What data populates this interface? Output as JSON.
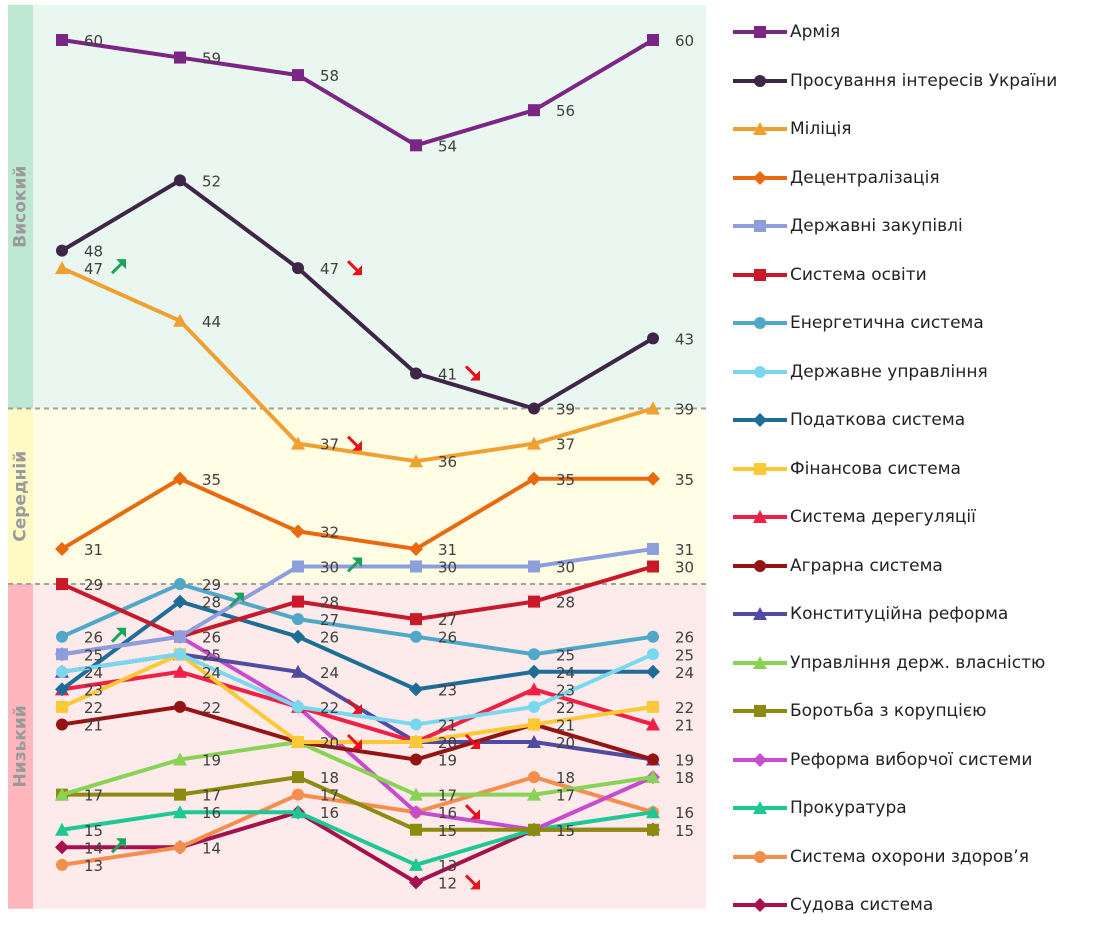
{
  "chart_data": {
    "type": "line",
    "x": [
      "1",
      "2",
      "3",
      "4",
      "5",
      "6"
    ],
    "bands": [
      {
        "name": "Високий",
        "from": 39,
        "to": 62,
        "color": "#bfe8d2",
        "fill": "#eaf6f0"
      },
      {
        "name": "Середній",
        "from": 29,
        "to": 39,
        "color": "#fff9c4",
        "fill": "#fffde3"
      },
      {
        "name": "Низький",
        "from": 10.5,
        "to": 29,
        "color": "#ffb6bc",
        "fill": "#fdeaea"
      }
    ],
    "ylim": [
      10.5,
      62
    ],
    "series": [
      {
        "name": "Армія",
        "color": "#7b2585",
        "marker": "square",
        "values": [
          60,
          59,
          58,
          54,
          56,
          60
        ]
      },
      {
        "name": "Просування інтересів України",
        "color": "#3f2548",
        "marker": "circle",
        "values": [
          48,
          52,
          47,
          41,
          39,
          43
        ]
      },
      {
        "name": "Міліція",
        "color": "#f0a030",
        "marker": "triangle",
        "values": [
          47,
          44,
          37,
          36,
          37,
          39
        ]
      },
      {
        "name": "Децентралізація",
        "color": "#e8690f",
        "marker": "diamond",
        "values": [
          31,
          35,
          32,
          31,
          35,
          35
        ]
      },
      {
        "name": "Державні закупівлі",
        "color": "#8c9fdc",
        "marker": "square",
        "values": [
          25,
          26,
          30,
          30,
          30,
          31
        ]
      },
      {
        "name": "Система освіти",
        "color": "#c9182a",
        "marker": "square",
        "values": [
          29,
          26,
          28,
          27,
          28,
          30
        ]
      },
      {
        "name": "Енергетична система",
        "color": "#4fa8c8",
        "marker": "circle",
        "values": [
          26,
          29,
          27,
          26,
          25,
          26
        ]
      },
      {
        "name": "Державне управління",
        "color": "#7ad8ee",
        "marker": "circle",
        "values": [
          24,
          25,
          22,
          21,
          22,
          25
        ]
      },
      {
        "name": "Податкова система",
        "color": "#1d6d96",
        "marker": "diamond",
        "values": [
          23,
          28,
          26,
          23,
          24,
          24
        ]
      },
      {
        "name": "Фінансова система",
        "color": "#fbc836",
        "marker": "square",
        "values": [
          22,
          25,
          20,
          20,
          21,
          22
        ]
      },
      {
        "name": "Система дерегуляції",
        "color": "#ef1f45",
        "marker": "triangle",
        "values": [
          23,
          24,
          22,
          20,
          23,
          21
        ]
      },
      {
        "name": "Аграрна система",
        "color": "#951313",
        "marker": "circle",
        "values": [
          21,
          22,
          20,
          19,
          21,
          19
        ]
      },
      {
        "name": "Конституційна реформа",
        "color": "#514aa2",
        "marker": "triangle",
        "values": [
          24,
          25,
          24,
          20,
          20,
          19
        ]
      },
      {
        "name": "Управління держ. власністю",
        "color": "#88d254",
        "marker": "triangle",
        "values": [
          17,
          19,
          20,
          17,
          17,
          18
        ]
      },
      {
        "name": "Боротьба з корупцією",
        "color": "#8d8a10",
        "marker": "square",
        "values": [
          17,
          17,
          18,
          15,
          15,
          15
        ]
      },
      {
        "name": "Реформа виборчої системи",
        "color": "#c84bcd",
        "marker": "diamond",
        "values": [
          25,
          26,
          22,
          16,
          15,
          18
        ]
      },
      {
        "name": "Прокуратура",
        "color": "#1ec794",
        "marker": "triangle",
        "values": [
          15,
          16,
          16,
          13,
          15,
          16
        ]
      },
      {
        "name": "Система охорони здоров’я",
        "color": "#f48e4c",
        "marker": "circle",
        "values": [
          13,
          14,
          17,
          16,
          18,
          16
        ]
      },
      {
        "name": "Судова система",
        "color": "#a6104c",
        "marker": "diamond",
        "values": [
          14,
          14,
          16,
          12,
          15,
          15
        ]
      }
    ],
    "data_labels": [
      {
        "x": 0,
        "v": 60,
        "text": "60"
      },
      {
        "x": 1,
        "v": 59,
        "text": "59"
      },
      {
        "x": 2,
        "v": 58,
        "text": "58"
      },
      {
        "x": 3,
        "v": 54,
        "text": "54"
      },
      {
        "x": 4,
        "v": 56,
        "text": "56"
      },
      {
        "x": 5,
        "v": 60,
        "text": "60"
      },
      {
        "x": 0,
        "v": 48,
        "text": "48"
      },
      {
        "x": 1,
        "v": 52,
        "text": "52"
      },
      {
        "x": 2,
        "v": 47,
        "text": "47"
      },
      {
        "x": 3,
        "v": 41,
        "text": "41"
      },
      {
        "x": 4,
        "v": 39,
        "text": "39"
      },
      {
        "x": 5,
        "v": 43,
        "text": "43"
      },
      {
        "x": 0,
        "v": 47,
        "text": "47"
      },
      {
        "x": 1,
        "v": 44,
        "text": "44"
      },
      {
        "x": 2,
        "v": 37,
        "text": "37"
      },
      {
        "x": 3,
        "v": 36,
        "text": "36"
      },
      {
        "x": 4,
        "v": 37,
        "text": "37"
      },
      {
        "x": 5,
        "v": 39,
        "text": "39"
      },
      {
        "x": 0,
        "v": 31,
        "text": "31"
      },
      {
        "x": 1,
        "v": 35,
        "text": "35"
      },
      {
        "x": 2,
        "v": 32,
        "text": "32"
      },
      {
        "x": 3,
        "v": 31,
        "text": "31"
      },
      {
        "x": 4,
        "v": 35,
        "text": "35"
      },
      {
        "x": 5,
        "v": 35,
        "text": "35"
      },
      {
        "x": 2,
        "v": 30,
        "text": "30"
      },
      {
        "x": 3,
        "v": 30,
        "text": "30"
      },
      {
        "x": 4,
        "v": 30,
        "text": "30"
      },
      {
        "x": 5,
        "v": 31,
        "text": "31"
      },
      {
        "x": 5,
        "v": 30,
        "text": "30"
      },
      {
        "x": 0,
        "v": 29,
        "text": "29"
      },
      {
        "x": 1,
        "v": 29,
        "text": "29"
      },
      {
        "x": 1,
        "v": 28,
        "text": "28"
      },
      {
        "x": 2,
        "v": 28,
        "text": "28"
      },
      {
        "x": 2,
        "v": 27,
        "text": "27"
      },
      {
        "x": 3,
        "v": 27,
        "text": "27"
      },
      {
        "x": 4,
        "v": 28,
        "text": "28"
      },
      {
        "x": 0,
        "v": 26,
        "text": "26"
      },
      {
        "x": 1,
        "v": 26,
        "text": "26"
      },
      {
        "x": 2,
        "v": 26,
        "text": "26"
      },
      {
        "x": 3,
        "v": 26,
        "text": "26"
      },
      {
        "x": 5,
        "v": 26,
        "text": "26"
      },
      {
        "x": 0,
        "v": 25,
        "text": "25"
      },
      {
        "x": 1,
        "v": 25,
        "text": "25"
      },
      {
        "x": 4,
        "v": 25,
        "text": "25"
      },
      {
        "x": 5,
        "v": 25,
        "text": "25"
      },
      {
        "x": 0,
        "v": 24,
        "text": "24"
      },
      {
        "x": 1,
        "v": 24,
        "text": "24"
      },
      {
        "x": 2,
        "v": 24,
        "text": "24"
      },
      {
        "x": 4,
        "v": 24,
        "text": "24"
      },
      {
        "x": 5,
        "v": 24,
        "text": "24"
      },
      {
        "x": 0,
        "v": 23,
        "text": "23"
      },
      {
        "x": 3,
        "v": 23,
        "text": "23"
      },
      {
        "x": 4,
        "v": 23,
        "text": "23"
      },
      {
        "x": 0,
        "v": 22,
        "text": "22"
      },
      {
        "x": 1,
        "v": 22,
        "text": "22"
      },
      {
        "x": 2,
        "v": 22,
        "text": "22"
      },
      {
        "x": 4,
        "v": 22,
        "text": "22"
      },
      {
        "x": 5,
        "v": 22,
        "text": "22"
      },
      {
        "x": 0,
        "v": 21,
        "text": "21"
      },
      {
        "x": 3,
        "v": 21,
        "text": "21"
      },
      {
        "x": 4,
        "v": 21,
        "text": "21"
      },
      {
        "x": 5,
        "v": 21,
        "text": "21"
      },
      {
        "x": 2,
        "v": 20,
        "text": "20"
      },
      {
        "x": 3,
        "v": 20,
        "text": "20"
      },
      {
        "x": 4,
        "v": 20,
        "text": "20"
      },
      {
        "x": 1,
        "v": 19,
        "text": "19"
      },
      {
        "x": 3,
        "v": 19,
        "text": "19"
      },
      {
        "x": 5,
        "v": 19,
        "text": "19"
      },
      {
        "x": 2,
        "v": 18,
        "text": "18"
      },
      {
        "x": 4,
        "v": 18,
        "text": "18"
      },
      {
        "x": 5,
        "v": 18,
        "text": "18"
      },
      {
        "x": 0,
        "v": 17,
        "text": "17"
      },
      {
        "x": 1,
        "v": 17,
        "text": "17"
      },
      {
        "x": 2,
        "v": 17,
        "text": "17"
      },
      {
        "x": 3,
        "v": 17,
        "text": "17"
      },
      {
        "x": 4,
        "v": 17,
        "text": "17"
      },
      {
        "x": 1,
        "v": 16,
        "text": "16"
      },
      {
        "x": 2,
        "v": 16,
        "text": "16"
      },
      {
        "x": 3,
        "v": 16,
        "text": "16"
      },
      {
        "x": 5,
        "v": 16,
        "text": "16"
      },
      {
        "x": 0,
        "v": 15,
        "text": "15"
      },
      {
        "x": 3,
        "v": 15,
        "text": "15"
      },
      {
        "x": 4,
        "v": 15,
        "text": "15"
      },
      {
        "x": 5,
        "v": 15,
        "text": "15"
      },
      {
        "x": 0,
        "v": 14,
        "text": "14"
      },
      {
        "x": 1,
        "v": 14,
        "text": "14"
      },
      {
        "x": 0,
        "v": 13,
        "text": "13"
      },
      {
        "x": 3,
        "v": 13,
        "text": "13"
      },
      {
        "x": 3,
        "v": 12,
        "text": "12"
      }
    ],
    "trend_arrows": [
      {
        "x": 0,
        "v": 47,
        "dir": "up",
        "color": "#1aa35c"
      },
      {
        "x": 2,
        "v": 47,
        "dir": "down",
        "color": "#e8101c"
      },
      {
        "x": 3,
        "v": 41,
        "dir": "down",
        "color": "#e8101c"
      },
      {
        "x": 2,
        "v": 37,
        "dir": "down",
        "color": "#e8101c"
      },
      {
        "x": 2,
        "v": 30,
        "dir": "up",
        "color": "#1aa35c"
      },
      {
        "x": 1,
        "v": 28,
        "dir": "up",
        "color": "#1aa35c"
      },
      {
        "x": 0,
        "v": 26,
        "dir": "up",
        "color": "#1aa35c"
      },
      {
        "x": 2,
        "v": 22,
        "dir": "down",
        "color": "#e8101c"
      },
      {
        "x": 2,
        "v": 20,
        "dir": "down",
        "color": "#e8101c"
      },
      {
        "x": 3,
        "v": 20,
        "dir": "down",
        "color": "#e8101c"
      },
      {
        "x": 3,
        "v": 16,
        "dir": "down",
        "color": "#e8101c"
      },
      {
        "x": 0,
        "v": 14,
        "dir": "up",
        "color": "#1aa35c"
      },
      {
        "x": 3,
        "v": 12,
        "dir": "down",
        "color": "#e8101c"
      }
    ],
    "legend_position": "right",
    "grid": false
  }
}
